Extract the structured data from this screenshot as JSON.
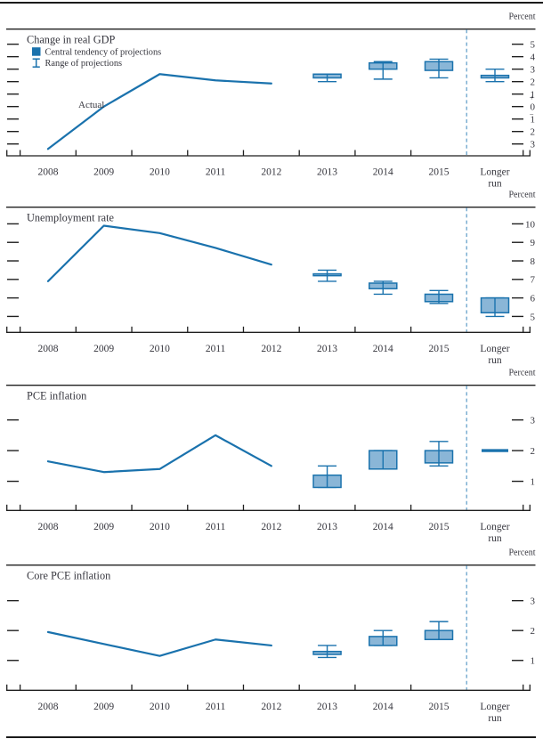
{
  "figure": {
    "description": "Central tendencies and ranges of FOMC economic projections, 2013-15 and over the longer run",
    "unit_label": "Percent"
  },
  "colors": {
    "line_blue": "#1a72ad",
    "box_fill": "#8ab6d7",
    "box_border": "#1a72ad",
    "dashed_separator": "#5b9bc7",
    "axis_black": "#1f1f1f",
    "text": "#35353d"
  },
  "legend": {
    "central_tendency": "Central tendency of projections",
    "range": "Range of projections"
  },
  "actual_label": "Actual",
  "x_axis": {
    "years": [
      "2008",
      "2009",
      "2010",
      "2011",
      "2012",
      "2013",
      "2014",
      "2015"
    ],
    "longer_run": [
      "Longer",
      "run"
    ]
  },
  "chart_data": [
    {
      "type": "line+box-whisker",
      "title": "Change in real GDP",
      "unit": "Percent",
      "ylim": [
        -3.95,
        6.21
      ],
      "y_ticks": [
        {
          "value": 5,
          "label": "5"
        },
        {
          "value": 4,
          "label": "4"
        },
        {
          "value": 3,
          "label": "3"
        },
        {
          "value": 2,
          "label": "2"
        },
        {
          "value": 1,
          "label": "1"
        },
        {
          "value": 0,
          "label": "0"
        },
        {
          "value": -1,
          "label": "1"
        },
        {
          "value": -2,
          "label": "2"
        },
        {
          "value": -3,
          "label": "3"
        }
      ],
      "zero_signs": {
        "plus": "+",
        "minus": "−"
      },
      "has_legend": true,
      "actual": {
        "years": [
          2008,
          2009,
          2010,
          2011,
          2012
        ],
        "values": [
          -3.4,
          0.0,
          2.6,
          2.1,
          1.85
        ]
      },
      "projections": [
        {
          "period": "2013",
          "central_tendency": [
            2.3,
            2.6
          ],
          "range": [
            2.0,
            2.6
          ]
        },
        {
          "period": "2014",
          "central_tendency": [
            3.0,
            3.5
          ],
          "range": [
            2.2,
            3.6
          ]
        },
        {
          "period": "2015",
          "central_tendency": [
            2.9,
            3.6
          ],
          "range": [
            2.3,
            3.8
          ]
        },
        {
          "period": "Longer run",
          "central_tendency": [
            2.3,
            2.5
          ],
          "range": [
            2.0,
            3.0
          ]
        }
      ]
    },
    {
      "type": "line+box-whisker",
      "title": "Unemployment rate",
      "unit": "Percent",
      "ylim": [
        4.14,
        10.9
      ],
      "y_ticks": [
        {
          "value": 10,
          "label": "10"
        },
        {
          "value": 9,
          "label": "9"
        },
        {
          "value": 8,
          "label": "8"
        },
        {
          "value": 7,
          "label": "7"
        },
        {
          "value": 6,
          "label": "6"
        },
        {
          "value": 5,
          "label": "5"
        }
      ],
      "actual": {
        "years": [
          2008,
          2009,
          2010,
          2011,
          2012
        ],
        "values": [
          6.9,
          9.9,
          9.5,
          8.7,
          7.8
        ]
      },
      "projections": [
        {
          "period": "2013",
          "central_tendency": [
            7.2,
            7.3
          ],
          "range": [
            6.9,
            7.5
          ]
        },
        {
          "period": "2014",
          "central_tendency": [
            6.5,
            6.8
          ],
          "range": [
            6.2,
            6.9
          ]
        },
        {
          "period": "2015",
          "central_tendency": [
            5.8,
            6.2
          ],
          "range": [
            5.7,
            6.4
          ]
        },
        {
          "period": "Longer run",
          "central_tendency": [
            5.2,
            6.0
          ],
          "range": [
            5.0,
            6.0
          ]
        }
      ]
    },
    {
      "type": "line+box-whisker",
      "title": "PCE inflation",
      "unit": "Percent",
      "ylim": [
        0.05,
        4.13
      ],
      "y_ticks": [
        {
          "value": 3,
          "label": "3"
        },
        {
          "value": 2,
          "label": "2"
        },
        {
          "value": 1,
          "label": "1"
        }
      ],
      "actual": {
        "years": [
          2008,
          2009,
          2010,
          2011,
          2012
        ],
        "values": [
          1.65,
          1.3,
          1.4,
          2.5,
          1.5
        ]
      },
      "projections": [
        {
          "period": "2013",
          "central_tendency": [
            0.8,
            1.2
          ],
          "range": [
            0.8,
            1.5
          ]
        },
        {
          "period": "2014",
          "central_tendency": [
            1.4,
            2.0
          ],
          "range": [
            1.4,
            2.0
          ]
        },
        {
          "period": "2015",
          "central_tendency": [
            1.6,
            2.0
          ],
          "range": [
            1.5,
            2.3
          ]
        },
        {
          "period": "Longer run",
          "point": 2.0
        }
      ]
    },
    {
      "type": "line+box-whisker",
      "title": "Core PCE inflation",
      "unit": "Percent",
      "ylim": [
        0.0,
        4.19
      ],
      "y_ticks": [
        {
          "value": 3,
          "label": "3"
        },
        {
          "value": 2,
          "label": "2"
        },
        {
          "value": 1,
          "label": "1"
        }
      ],
      "actual": {
        "years": [
          2008,
          2009,
          2010,
          2011,
          2012
        ],
        "values": [
          1.95,
          1.55,
          1.15,
          1.7,
          1.5
        ]
      },
      "projections": [
        {
          "period": "2013",
          "central_tendency": [
            1.2,
            1.3
          ],
          "range": [
            1.1,
            1.5
          ]
        },
        {
          "period": "2014",
          "central_tendency": [
            1.5,
            1.8
          ],
          "range": [
            1.5,
            2.0
          ]
        },
        {
          "period": "2015",
          "central_tendency": [
            1.7,
            2.0
          ],
          "range": [
            1.7,
            2.3
          ]
        }
      ]
    }
  ]
}
